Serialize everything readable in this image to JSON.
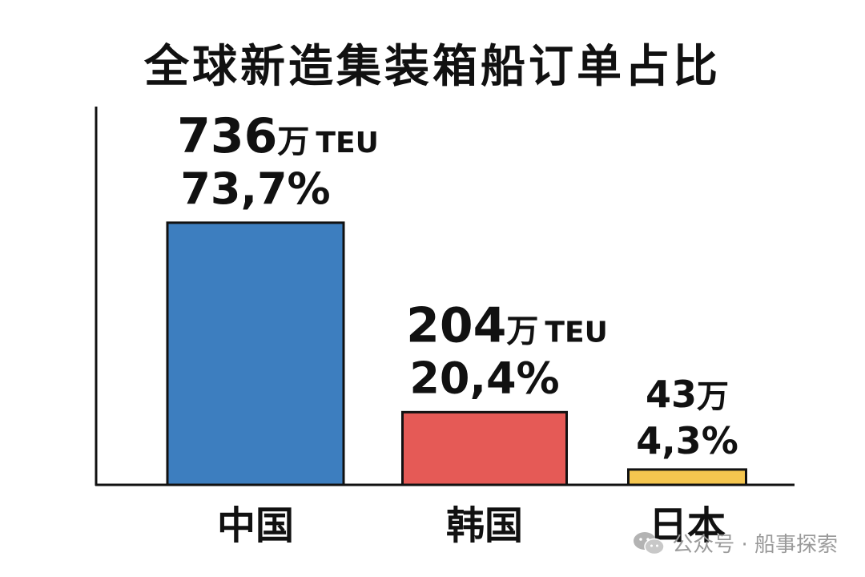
{
  "chart_data": {
    "type": "bar",
    "title": "全球新造集装箱船订单占比",
    "categories": [
      "中国",
      "韩国",
      "日本"
    ],
    "values": [
      736,
      204,
      43
    ],
    "percentages": [
      73.7,
      20.4,
      4.3
    ],
    "value_labels": [
      "736万",
      "204万",
      "43万"
    ],
    "unit_labels": [
      "TEU",
      "TEU",
      ""
    ],
    "percent_labels": [
      "73,7%",
      "20,4%",
      "4,3%"
    ],
    "colors": [
      "#3d7ebf",
      "#e55a56",
      "#f5c64f"
    ],
    "xlabel": "",
    "ylabel": "",
    "ylim": [
      0,
      900
    ],
    "grid": false
  },
  "watermark": {
    "text": "公众号 · 船事探索",
    "icon": "wechat-icon"
  }
}
